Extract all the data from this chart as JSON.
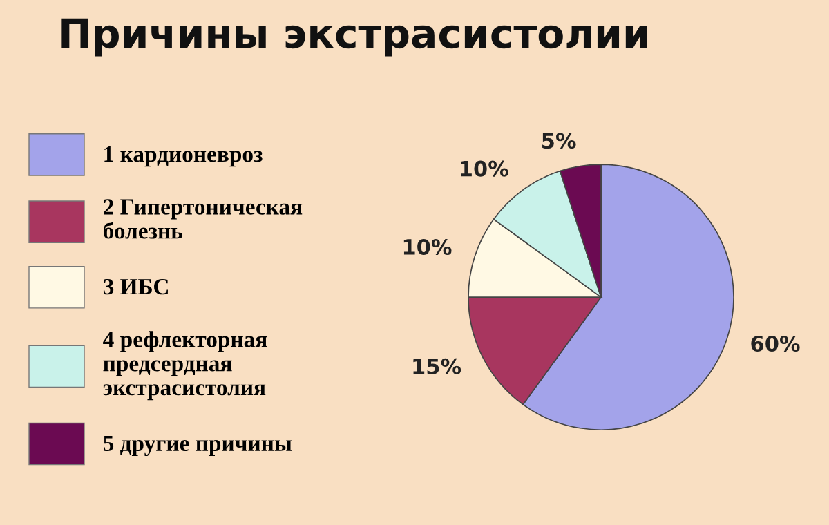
{
  "chart_data": {
    "type": "pie",
    "title": "Причины экстрасистолии",
    "categories": [
      "1 кардионевроз",
      "2 Гипертоническая\nболезнь",
      "3 ИБС",
      "4 рефлекторная\nпредсердная\nэкстрасистолия",
      "5 другие причины"
    ],
    "values": [
      60,
      15,
      10,
      10,
      5
    ],
    "colors": [
      "#a3a3ea",
      "#a8365f",
      "#fff9e4",
      "#c9f2ea",
      "#6b0a52"
    ],
    "value_labels": [
      "60%",
      "15%",
      "10%",
      "10%",
      "5%"
    ],
    "legend": "left"
  }
}
